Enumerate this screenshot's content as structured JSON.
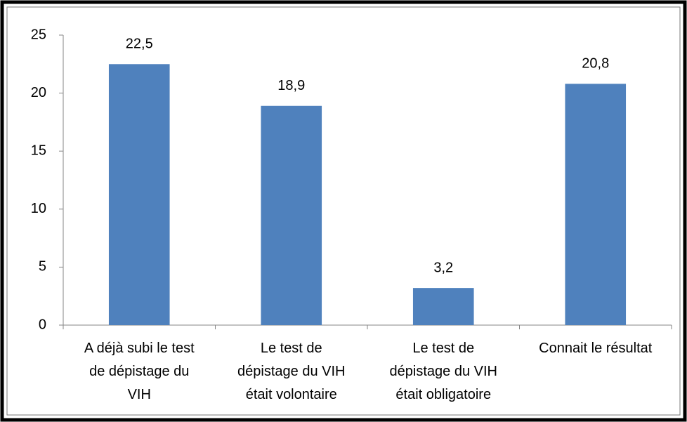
{
  "chart_data": {
    "type": "bar",
    "categories": [
      "A déjà subi le test de dépistage du VIH",
      "Le test de dépistage du VIH était volontaire",
      "Le test de dépistage du VIH était obligatoire",
      "Connait le résultat"
    ],
    "values": [
      22.5,
      18.9,
      3.2,
      20.8
    ],
    "value_labels": [
      "22,5",
      "18,9",
      "3,2",
      "20,8"
    ],
    "color": "#4f81bd",
    "ylim": [
      0,
      25
    ],
    "yticks": [
      0,
      5,
      10,
      15,
      20,
      25
    ],
    "grid": false
  }
}
